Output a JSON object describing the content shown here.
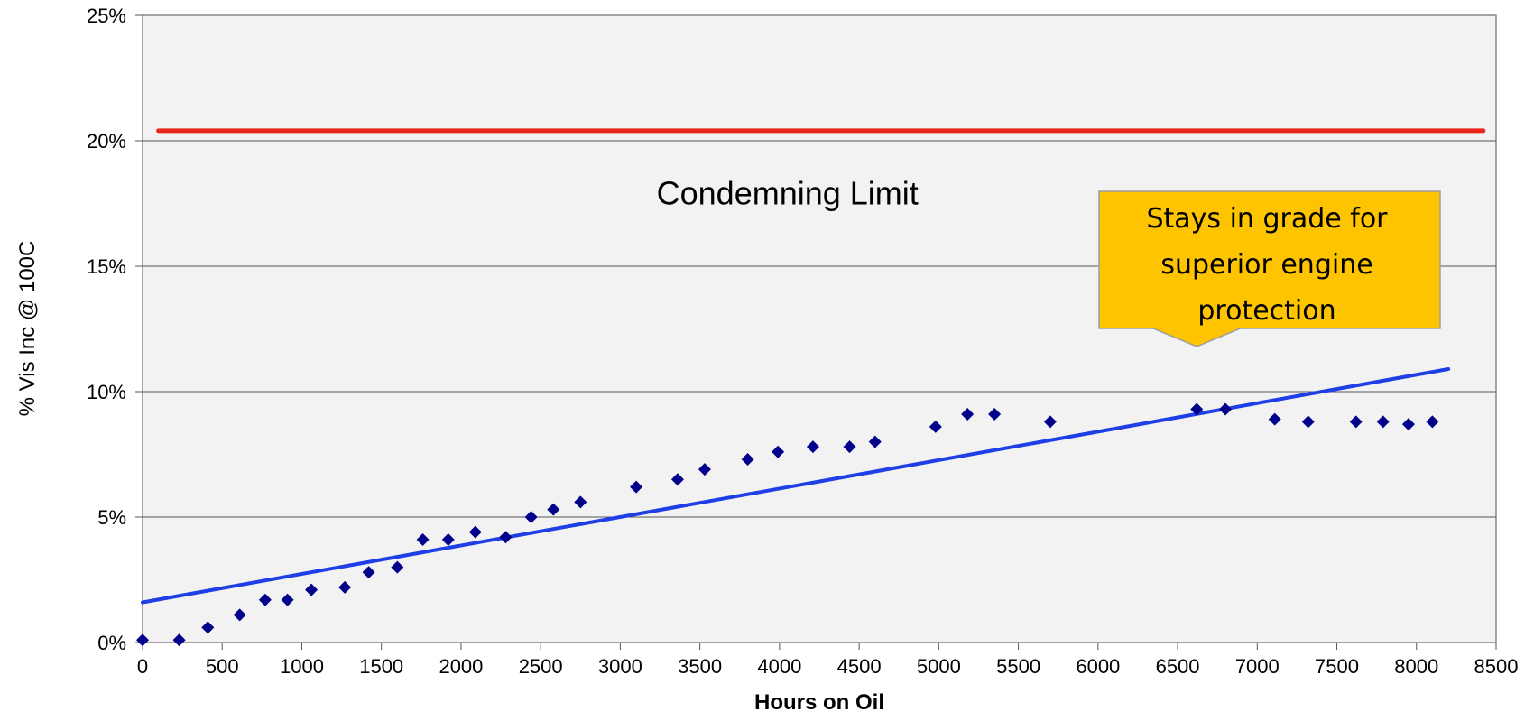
{
  "chart_data": {
    "type": "scatter",
    "xlabel": "Hours on Oil",
    "ylabel": "% Vis Inc @ 100C",
    "xlim": [
      0,
      8500
    ],
    "ylim": [
      0,
      25
    ],
    "x_ticks": [
      "0",
      "500",
      "1000",
      "1500",
      "2000",
      "2500",
      "3000",
      "3500",
      "4000",
      "4500",
      "5000",
      "5500",
      "6000",
      "6500",
      "7000",
      "7500",
      "8000",
      "8500"
    ],
    "y_ticks": [
      "0%",
      "5%",
      "10%",
      "15%",
      "20%",
      "25%"
    ],
    "grid": "horizontal",
    "series": [
      {
        "type": "scatter",
        "color": "#00008B",
        "marker": "diamond",
        "points": [
          [
            0,
            0.1
          ],
          [
            230,
            0.1
          ],
          [
            410,
            0.6
          ],
          [
            610,
            1.1
          ],
          [
            770,
            1.7
          ],
          [
            910,
            1.7
          ],
          [
            1060,
            2.1
          ],
          [
            1270,
            2.2
          ],
          [
            1420,
            2.8
          ],
          [
            1600,
            3.0
          ],
          [
            1760,
            4.1
          ],
          [
            1920,
            4.1
          ],
          [
            2090,
            4.4
          ],
          [
            2280,
            4.2
          ],
          [
            2440,
            5.0
          ],
          [
            2580,
            5.3
          ],
          [
            2750,
            5.6
          ],
          [
            3100,
            6.2
          ],
          [
            3360,
            6.5
          ],
          [
            3530,
            6.9
          ],
          [
            3800,
            7.3
          ],
          [
            3990,
            7.6
          ],
          [
            4210,
            7.8
          ],
          [
            4440,
            7.8
          ],
          [
            4600,
            8.0
          ],
          [
            4980,
            8.6
          ],
          [
            5180,
            9.1
          ],
          [
            5350,
            9.1
          ],
          [
            5700,
            8.8
          ],
          [
            6620,
            9.3
          ],
          [
            6800,
            9.3
          ],
          [
            7110,
            8.9
          ],
          [
            7320,
            8.8
          ],
          [
            7620,
            8.8
          ],
          [
            7790,
            8.8
          ],
          [
            7950,
            8.7
          ],
          [
            8100,
            8.8
          ]
        ]
      },
      {
        "type": "line",
        "color": "#1E3EE6",
        "points": [
          [
            0,
            1.6
          ],
          [
            8200,
            10.9
          ]
        ]
      },
      {
        "type": "line",
        "color": "#E8271C",
        "points": [
          [
            100,
            20.4
          ],
          [
            8420,
            20.4
          ]
        ]
      }
    ],
    "annotations": [
      {
        "text": "Condemning Limit",
        "x": 4050,
        "y": 17.9
      }
    ],
    "callout": {
      "lines": [
        "Stays in grade for",
        "superior engine",
        "protection"
      ],
      "fill": "#FFC400",
      "pointer": [
        6620,
        11.8
      ]
    },
    "plot_bg": "#F2F2F2"
  }
}
